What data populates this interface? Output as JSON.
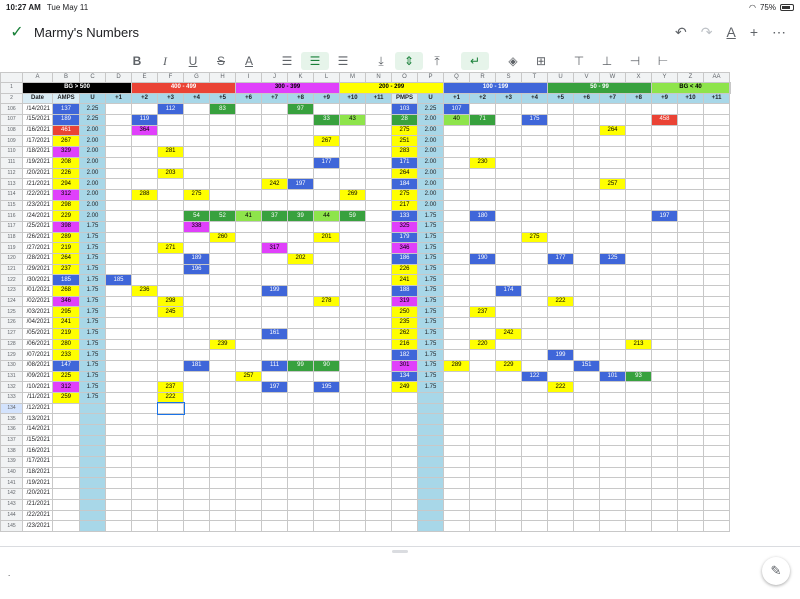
{
  "status": {
    "time": "10:27 AM",
    "date": "Tue May 11",
    "battery": "75%"
  },
  "doc_title": "Marmy's Numbers",
  "toolbar_icons": [
    "bold-icon",
    "italic-icon",
    "underline-icon",
    "strikethrough-icon",
    "text-color-icon",
    "align-left-icon",
    "align-center-icon",
    "align-right-icon",
    "valign-bottom-icon",
    "valign-middle-icon",
    "valign-top-icon",
    "wrap-icon",
    "fill-color-icon",
    "borders-icon",
    "insert-row-above-icon",
    "insert-row-below-icon",
    "insert-col-left-icon",
    "insert-col-right-icon"
  ],
  "colors": {
    "black": "#000000",
    "red": "#ea4335",
    "magenta": "#e040fb",
    "yellow": "#ffff00",
    "blue": "#3f66d9",
    "green": "#38a13e",
    "lightgreen": "#8ee44b",
    "u_col": "#a8d7e8"
  },
  "col_letters": [
    "A",
    "B",
    "C",
    "D",
    "E",
    "F",
    "G",
    "H",
    "I",
    "J",
    "K",
    "L",
    "M",
    "N",
    "O",
    "P",
    "Q",
    "R",
    "S",
    "T",
    "U",
    "V",
    "W",
    "X",
    "Y",
    "Z",
    "AA"
  ],
  "legend": [
    {
      "text": "BG > 500",
      "color": "#000000",
      "fg": "#ffffff"
    },
    {
      "text": "400 - 499",
      "color": "#ea4335",
      "fg": "#ffffff"
    },
    {
      "text": "300 - 399",
      "color": "#e040fb",
      "fg": "#000000"
    },
    {
      "text": "200 - 299",
      "color": "#ffff00",
      "fg": "#000000"
    },
    {
      "text": "100 - 199",
      "color": "#3f66d9",
      "fg": "#ffffff"
    },
    {
      "text": "50 - 99",
      "color": "#38a13e",
      "fg": "#ffffff"
    },
    {
      "text": "BG < 40",
      "color": "#8ee44b",
      "fg": "#000000"
    }
  ],
  "headers": [
    "Date",
    "AMPS",
    "U",
    "+1",
    "+2",
    "+3",
    "+4",
    "+5",
    "+6",
    "+7",
    "+8",
    "+9",
    "+10",
    "+11",
    "PMPS",
    "U",
    "+1",
    "+2",
    "+3",
    "+4",
    "+5",
    "+6",
    "+7",
    "+8",
    "+9",
    "+10",
    "+11"
  ],
  "rows": [
    {
      "n": "106",
      "date": "/14/2021",
      "amps": "137",
      "u": "2.25",
      "pmps": "103",
      "u2": "2.25",
      "cells": {
        "5": "112",
        "7": "83",
        "10": "97",
        "16": "107"
      }
    },
    {
      "n": "107",
      "date": "/15/2021",
      "amps": "189",
      "u": "2.25",
      "pmps": "28",
      "u2": "2.00",
      "cells": {
        "4": "119",
        "11": "33",
        "12": "43",
        "16": "40",
        "17": "71",
        "19": "175",
        "24": "458"
      }
    },
    {
      "n": "108",
      "date": "/16/2021",
      "amps": "461",
      "u": "2.00",
      "pmps": "275",
      "u2": "2.00",
      "cells": {
        "4": "364",
        "22": "264"
      }
    },
    {
      "n": "109",
      "date": "/17/2021",
      "amps": "267",
      "u": "2.00",
      "pmps": "251",
      "u2": "2.00",
      "cells": {
        "11": "267"
      }
    },
    {
      "n": "110",
      "date": "/18/2021",
      "amps": "329",
      "u": "2.00",
      "pmps": "283",
      "u2": "2.00",
      "cells": {
        "5": "281"
      }
    },
    {
      "n": "111",
      "date": "/19/2021",
      "amps": "208",
      "u": "2.00",
      "pmps": "171",
      "u2": "2.00",
      "cells": {
        "11": "177",
        "17": "230"
      }
    },
    {
      "n": "112",
      "date": "/20/2021",
      "amps": "226",
      "u": "2.00",
      "pmps": "264",
      "u2": "2.00",
      "cells": {
        "5": "203"
      }
    },
    {
      "n": "113",
      "date": "/21/2021",
      "amps": "294",
      "u": "2.00",
      "pmps": "184",
      "u2": "2.00",
      "cells": {
        "9": "242",
        "10": "197",
        "22": "257"
      }
    },
    {
      "n": "114",
      "date": "/22/2021",
      "amps": "312",
      "u": "2.00",
      "pmps": "275",
      "u2": "2.00",
      "cells": {
        "4": "288",
        "6": "275",
        "12": "269"
      }
    },
    {
      "n": "115",
      "date": "/23/2021",
      "amps": "298",
      "u": "2.00",
      "pmps": "217",
      "u2": "2.00",
      "cells": {}
    },
    {
      "n": "116",
      "date": "/24/2021",
      "amps": "229",
      "u": "2.00",
      "pmps": "133",
      "u2": "1.75",
      "cells": {
        "6": "54",
        "7": "52",
        "8": "41",
        "9": "37",
        "10": "39",
        "11": "44",
        "12": "59",
        "17": "180",
        "24": "197"
      }
    },
    {
      "n": "117",
      "date": "/25/2021",
      "amps": "398",
      "u": "1.75",
      "pmps": "325",
      "u2": "1.75",
      "cells": {
        "6": "338"
      }
    },
    {
      "n": "118",
      "date": "/26/2021",
      "amps": "289",
      "u": "1.75",
      "pmps": "179",
      "u2": "1.75",
      "cells": {
        "7": "260",
        "11": "201",
        "19": "275"
      }
    },
    {
      "n": "119",
      "date": "/27/2021",
      "amps": "219",
      "u": "1.75",
      "pmps": "346",
      "u2": "1.75",
      "cells": {
        "5": "271",
        "9": "317"
      }
    },
    {
      "n": "120",
      "date": "/28/2021",
      "amps": "264",
      "u": "1.75",
      "pmps": "186",
      "u2": "1.75",
      "cells": {
        "6": "189",
        "10": "202",
        "17": "190",
        "20": "177",
        "22": "125"
      }
    },
    {
      "n": "121",
      "date": "/29/2021",
      "amps": "237",
      "u": "1.75",
      "pmps": "226",
      "u2": "1.75",
      "cells": {
        "6": "196"
      }
    },
    {
      "n": "122",
      "date": "/30/2021",
      "amps": "185",
      "u": "1.75",
      "pmps": "241",
      "u2": "1.75",
      "cells": {
        "3": "185"
      }
    },
    {
      "n": "123",
      "date": "/01/2021",
      "amps": "268",
      "u": "1.75",
      "pmps": "188",
      "u2": "1.75",
      "cells": {
        "4": "236",
        "9": "199",
        "18": "174"
      }
    },
    {
      "n": "124",
      "date": "/02/2021",
      "amps": "346",
      "u": "1.75",
      "pmps": "319",
      "u2": "1.75",
      "cells": {
        "5": "298",
        "11": "278",
        "20": "222"
      }
    },
    {
      "n": "125",
      "date": "/03/2021",
      "amps": "295",
      "u": "1.75",
      "pmps": "250",
      "u2": "1.75",
      "cells": {
        "5": "245",
        "17": "237"
      }
    },
    {
      "n": "126",
      "date": "/04/2021",
      "amps": "241",
      "u": "1.75",
      "pmps": "235",
      "u2": "1.75",
      "cells": {}
    },
    {
      "n": "127",
      "date": "/05/2021",
      "amps": "219",
      "u": "1.75",
      "pmps": "262",
      "u2": "1.75",
      "cells": {
        "9": "161",
        "18": "242"
      }
    },
    {
      "n": "128",
      "date": "/06/2021",
      "amps": "280",
      "u": "1.75",
      "pmps": "216",
      "u2": "1.75",
      "cells": {
        "7": "239",
        "17": "220",
        "23": "213"
      }
    },
    {
      "n": "129",
      "date": "/07/2021",
      "amps": "233",
      "u": "1.75",
      "pmps": "182",
      "u2": "1.75",
      "cells": {
        "20": "199"
      }
    },
    {
      "n": "130",
      "date": "/08/2021",
      "amps": "147",
      "u": "1.75",
      "pmps": "301",
      "u2": "1.75",
      "cells": {
        "6": "181",
        "9": "111",
        "10": "99",
        "11": "90",
        "16": "289",
        "18": "229",
        "21": "151"
      }
    },
    {
      "n": "131",
      "date": "/09/2021",
      "amps": "225",
      "u": "1.75",
      "pmps": "134",
      "u2": "1.75",
      "cells": {
        "8": "257",
        "19": "122",
        "22": "101",
        "23": "93"
      }
    },
    {
      "n": "132",
      "date": "/10/2021",
      "amps": "312",
      "u": "1.75",
      "pmps": "249",
      "u2": "1.75",
      "cells": {
        "5": "237",
        "9": "197",
        "11": "195",
        "20": "222"
      }
    },
    {
      "n": "133",
      "date": "/11/2021",
      "amps": "259",
      "u": "1.75",
      "pmps": "",
      "u2": "",
      "cells": {
        "5": "222"
      }
    },
    {
      "n": "134",
      "date": "/12/2021"
    },
    {
      "n": "135",
      "date": "/13/2021"
    },
    {
      "n": "136",
      "date": "/14/2021"
    },
    {
      "n": "137",
      "date": "/15/2021"
    },
    {
      "n": "138",
      "date": "/16/2021"
    },
    {
      "n": "139",
      "date": "/17/2021"
    },
    {
      "n": "140",
      "date": "/18/2021"
    },
    {
      "n": "141",
      "date": "/19/2021"
    },
    {
      "n": "142",
      "date": "/20/2021"
    },
    {
      "n": "143",
      "date": "/21/2021"
    },
    {
      "n": "144",
      "date": "/22/2021"
    },
    {
      "n": "145",
      "date": "/23/2021"
    }
  ]
}
